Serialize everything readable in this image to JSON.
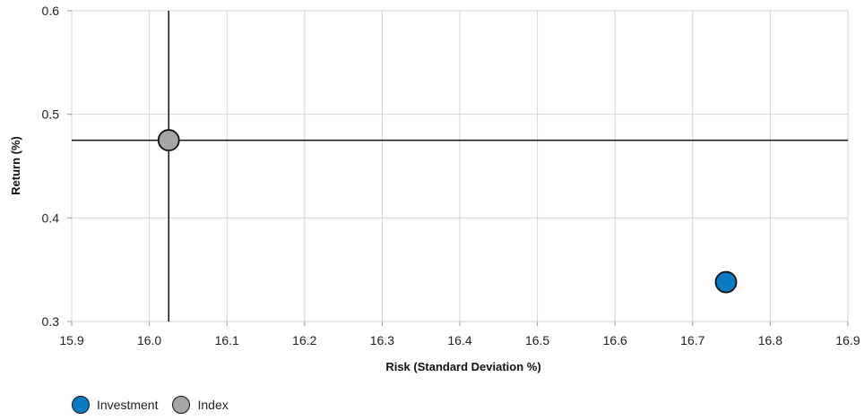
{
  "chart_data": {
    "type": "scatter",
    "xlabel": "Risk (Standard Deviation %)",
    "ylabel": "Return (%)",
    "xlim": [
      15.9,
      16.9
    ],
    "ylim": [
      0.3,
      0.6
    ],
    "xticks": [
      "15.9",
      "16.0",
      "16.1",
      "16.2",
      "16.3",
      "16.4",
      "16.5",
      "16.6",
      "16.7",
      "16.8",
      "16.9"
    ],
    "yticks": [
      "0.3",
      "0.4",
      "0.5",
      "0.6"
    ],
    "grid": true,
    "legend_position": "bottom-left",
    "crosshair_reference": "Index",
    "series": [
      {
        "name": "Investment",
        "x": 16.743,
        "y": 0.338,
        "color": "#0a7cc4"
      },
      {
        "name": "Index",
        "x": 16.025,
        "y": 0.475,
        "color": "#a6a6a6"
      }
    ]
  }
}
